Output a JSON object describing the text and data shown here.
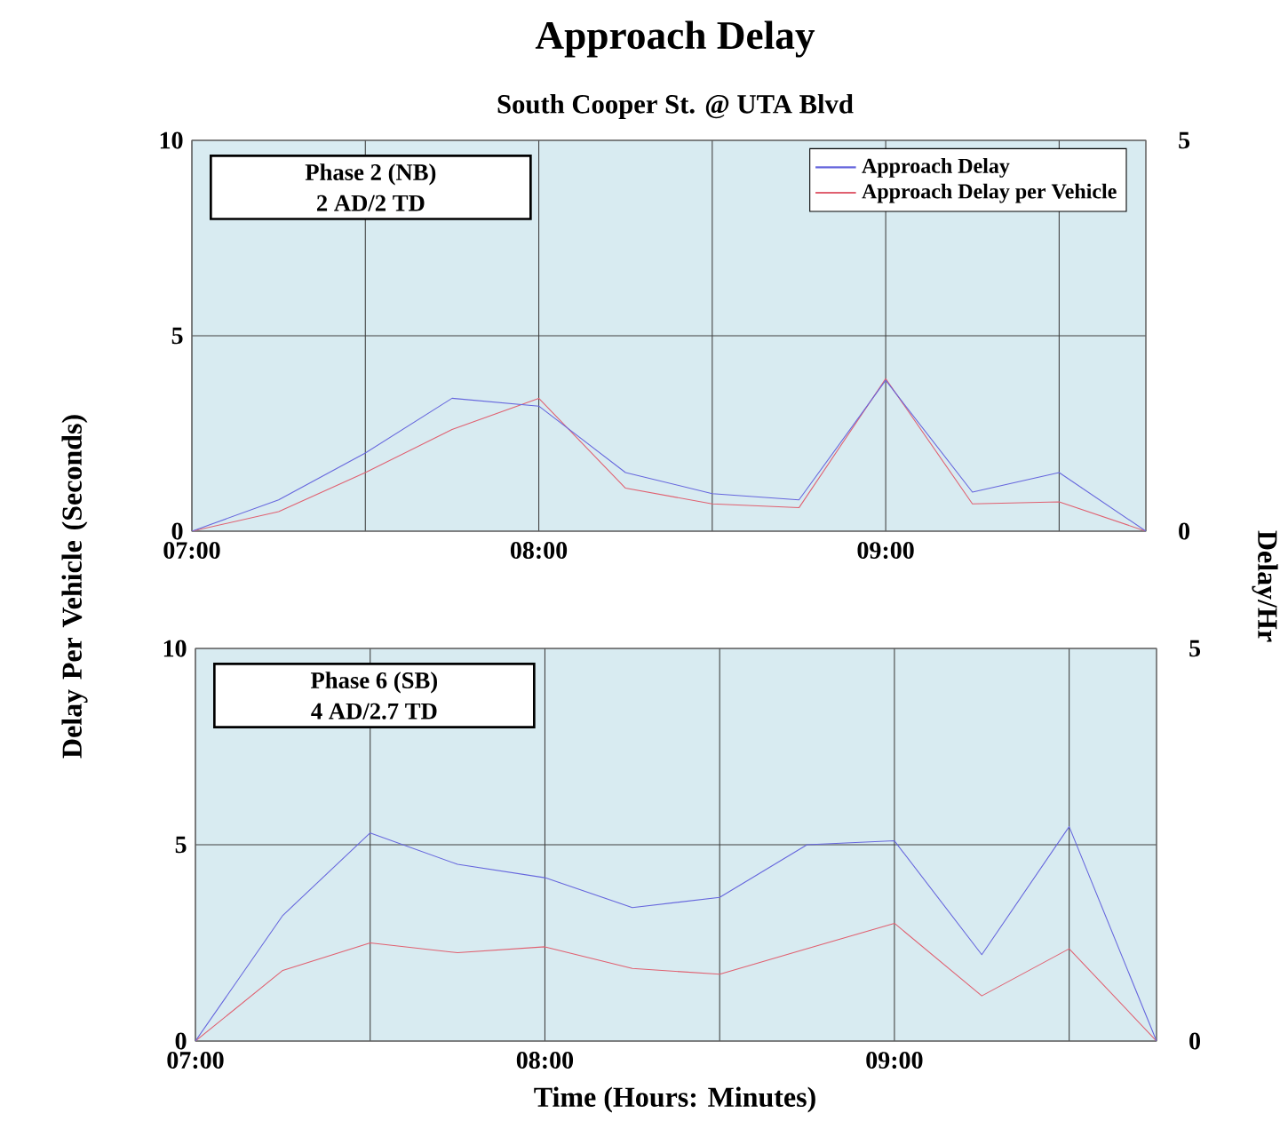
{
  "chart_data": [
    {
      "type": "line",
      "title": "Approach Delay",
      "subtitle": "South Cooper St. @ UTA Blvd",
      "ylabel": "Delay Per Vehicle (Seconds)",
      "y2label": "Delay/Hr",
      "annotations": [
        "Phase 2 (NB)",
        "2 AD/2 TD"
      ],
      "x": [
        7,
        7.25,
        7.5,
        7.75,
        8,
        8.25,
        8.5,
        8.75,
        9,
        9.25,
        9.5,
        9.75
      ],
      "xlim": [
        7,
        9.75
      ],
      "xticks": [
        {
          "value": 7,
          "label": "07:00"
        },
        {
          "value": 7.5,
          "label": null
        },
        {
          "value": 8,
          "label": "08:00"
        },
        {
          "value": 8.5,
          "label": null
        },
        {
          "value": 9,
          "label": "09:00"
        },
        {
          "value": 9.5,
          "label": null
        }
      ],
      "ylim": [
        0,
        10
      ],
      "yticks": [
        0,
        5,
        10
      ],
      "y2lim": [
        0,
        5
      ],
      "y2ticks": [
        0,
        5
      ],
      "grid": true,
      "legend": "top right",
      "series": [
        {
          "name": "Approach Delay",
          "color": "#6666dd",
          "axis": "y2",
          "values": [
            0,
            0.4,
            1.0,
            1.7,
            1.6,
            0.75,
            0.48,
            0.4,
            1.93,
            0.5,
            0.75,
            0
          ]
        },
        {
          "name": "Approach Delay per Vehicle",
          "color": "#e06070",
          "values": [
            0,
            0.5,
            1.5,
            2.6,
            3.4,
            1.1,
            0.7,
            0.6,
            3.9,
            0.7,
            0.75,
            0
          ]
        }
      ]
    },
    {
      "type": "line",
      "xlabel": "Time (Hours: Minutes)",
      "annotations": [
        "Phase 6 (SB)",
        "4 AD/2.7 TD"
      ],
      "x": [
        7,
        7.25,
        7.5,
        7.75,
        8,
        8.25,
        8.5,
        8.75,
        9,
        9.25,
        9.5,
        9.75
      ],
      "xlim": [
        7,
        9.75
      ],
      "xticks": [
        {
          "value": 7,
          "label": "07:00"
        },
        {
          "value": 7.5,
          "label": null
        },
        {
          "value": 8,
          "label": "08:00"
        },
        {
          "value": 8.5,
          "label": null
        },
        {
          "value": 9,
          "label": "09:00"
        },
        {
          "value": 9.5,
          "label": null
        }
      ],
      "ylim": [
        0,
        10
      ],
      "yticks": [
        0,
        5,
        10
      ],
      "y2lim": [
        0,
        5
      ],
      "y2ticks": [
        0,
        5
      ],
      "grid": true,
      "series": [
        {
          "color": "#6666dd",
          "axis": "y2",
          "values": [
            0,
            1.6,
            2.65,
            2.25,
            2.08,
            1.7,
            1.83,
            2.5,
            2.55,
            1.1,
            2.73,
            0
          ]
        },
        {
          "color": "#e06070",
          "values": [
            0,
            1.8,
            2.5,
            2.25,
            2.4,
            1.85,
            1.7,
            2.35,
            3.0,
            1.15,
            2.35,
            0
          ]
        }
      ]
    }
  ]
}
